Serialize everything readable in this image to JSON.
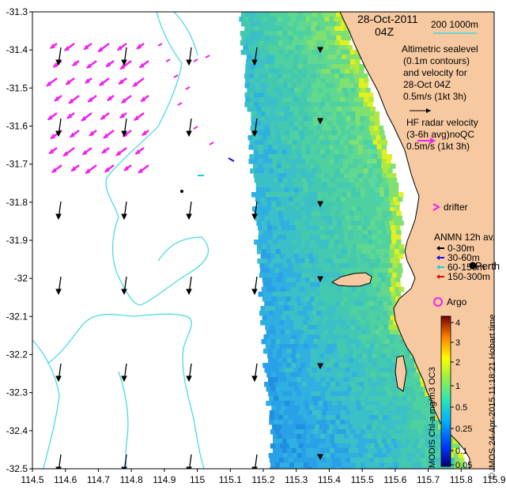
{
  "map": {
    "x_ticks": [
      "114.5",
      "114.6",
      "114.7",
      "114.8",
      "114.9",
      "115",
      "115.1",
      "115.2",
      "115.3",
      "115.4",
      "115.5",
      "115.6",
      "115.7",
      "115.8",
      "115.9"
    ],
    "y_ticks": [
      "-31.3",
      "-31.4",
      "-31.5",
      "-31.6",
      "-31.7",
      "-31.8",
      "-31.9",
      "-32",
      "-32.1",
      "-32.2",
      "-32.3",
      "-32.4",
      "-32.5"
    ],
    "lon_range": [
      114.5,
      115.9
    ],
    "lat_range": [
      -32.5,
      -31.3
    ]
  },
  "info": {
    "date": "28-Oct-2011",
    "hour": "04Z",
    "depth_label": "200  1000m",
    "alt_title": [
      "Altimetric sealevel",
      "(0.1m contours)",
      "and velocity for",
      "28-Oct 04Z",
      "0.5m/s (1kt 3h)"
    ],
    "hf_title": [
      "HF radar velocity",
      "(3-6h avg)noQC",
      "0.5m/s (1kt 3h)"
    ],
    "drifter": "drifter",
    "anmn_title": "ANMN 12h av.",
    "anmn_items": [
      {
        "label": "0-30m",
        "color": "#000000"
      },
      {
        "label": "30-60m",
        "color": "#1010e0"
      },
      {
        "label": "60-150m",
        "color": "#20c8e0"
      },
      {
        "label": "150-300m",
        "color": "#e01010"
      }
    ],
    "perth": "Perth",
    "argo": "Argo",
    "credit": "© IMOS 24-Apr-2015 11:18:21 Hobart time",
    "product": "MODIS Chl-a mg/m3 OC3"
  },
  "colorbar": {
    "labels": [
      "4",
      "3",
      "2",
      "1",
      "0.5",
      "0.25",
      "0.1",
      "0.05"
    ]
  },
  "colors": {
    "land": "#f7c9a0",
    "contour": "#40d8e0",
    "hf_arrow": "#ee22ee",
    "alt_arrow": "#000000"
  }
}
